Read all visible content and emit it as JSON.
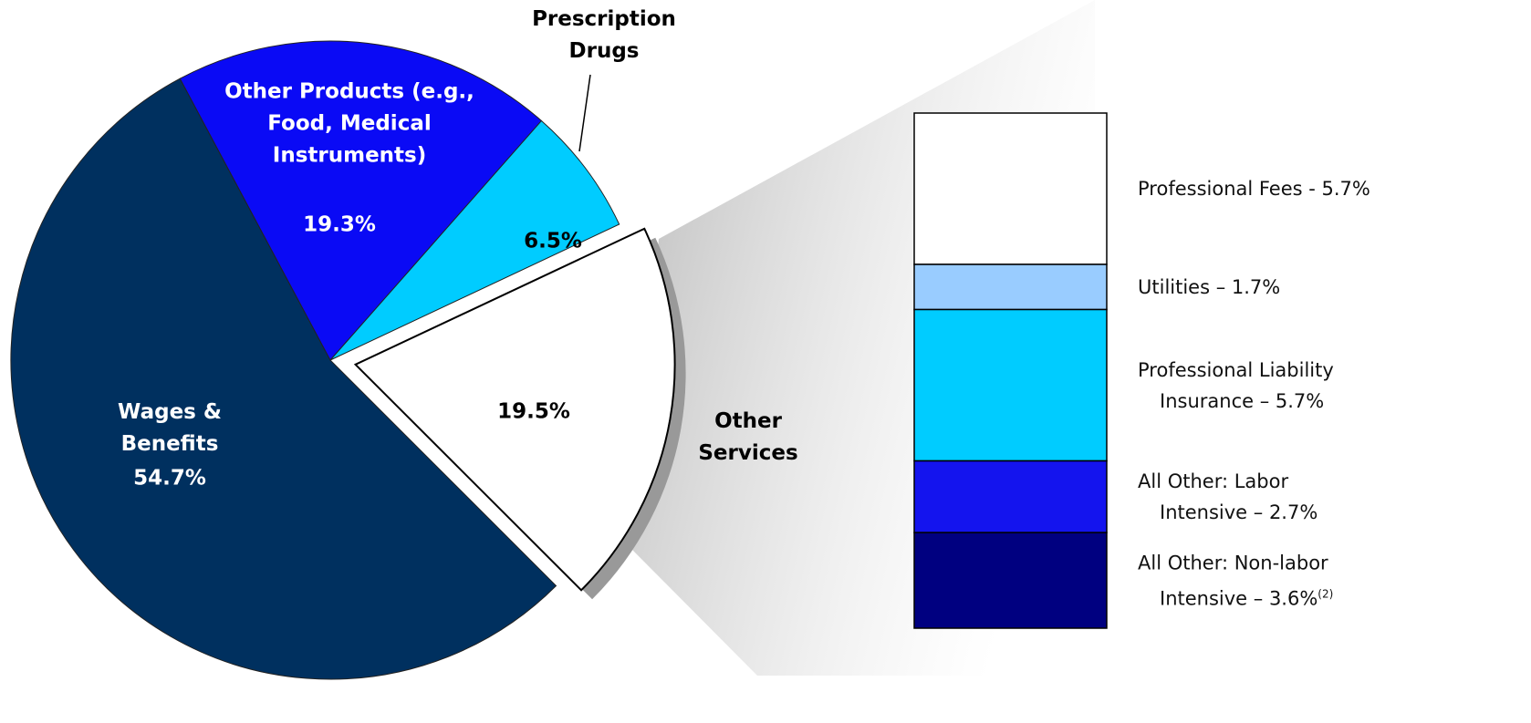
{
  "chart_data": [
    {
      "type": "pie",
      "categories": [
        "Wages & Benefits",
        "Other Products (e.g., Food, Medical Instruments)",
        "Prescription Drugs",
        "Other Services"
      ],
      "values": [
        54.7,
        19.3,
        6.5,
        19.5
      ],
      "value_labels": [
        "54.7%",
        "19.3%",
        "6.5%",
        "19.5%"
      ],
      "colors": [
        "#00305f",
        "#0a0af5",
        "#00ccff",
        "#ffffff"
      ],
      "exploded": "Other Services"
    },
    {
      "type": "stacked_bar",
      "series": [
        {
          "name": "Professional Fees - 5.7%",
          "color": "#ffffff",
          "values": [
            5.7
          ]
        },
        {
          "name": "Utilities – 1.7%",
          "color": "#99ccff",
          "values": [
            1.7
          ]
        },
        {
          "name": "Professional Liability Insurance – 5.7%",
          "color": "#00ccff",
          "values": [
            5.7
          ]
        },
        {
          "name": "All Other: Labor Intensive – 2.7%",
          "color": "#1414ee",
          "values": [
            2.7
          ]
        },
        {
          "name": "All Other: Non-labor Intensive – 3.6%",
          "superscript": "(2)",
          "color": "#000080",
          "values": [
            3.6
          ]
        }
      ]
    }
  ]
}
